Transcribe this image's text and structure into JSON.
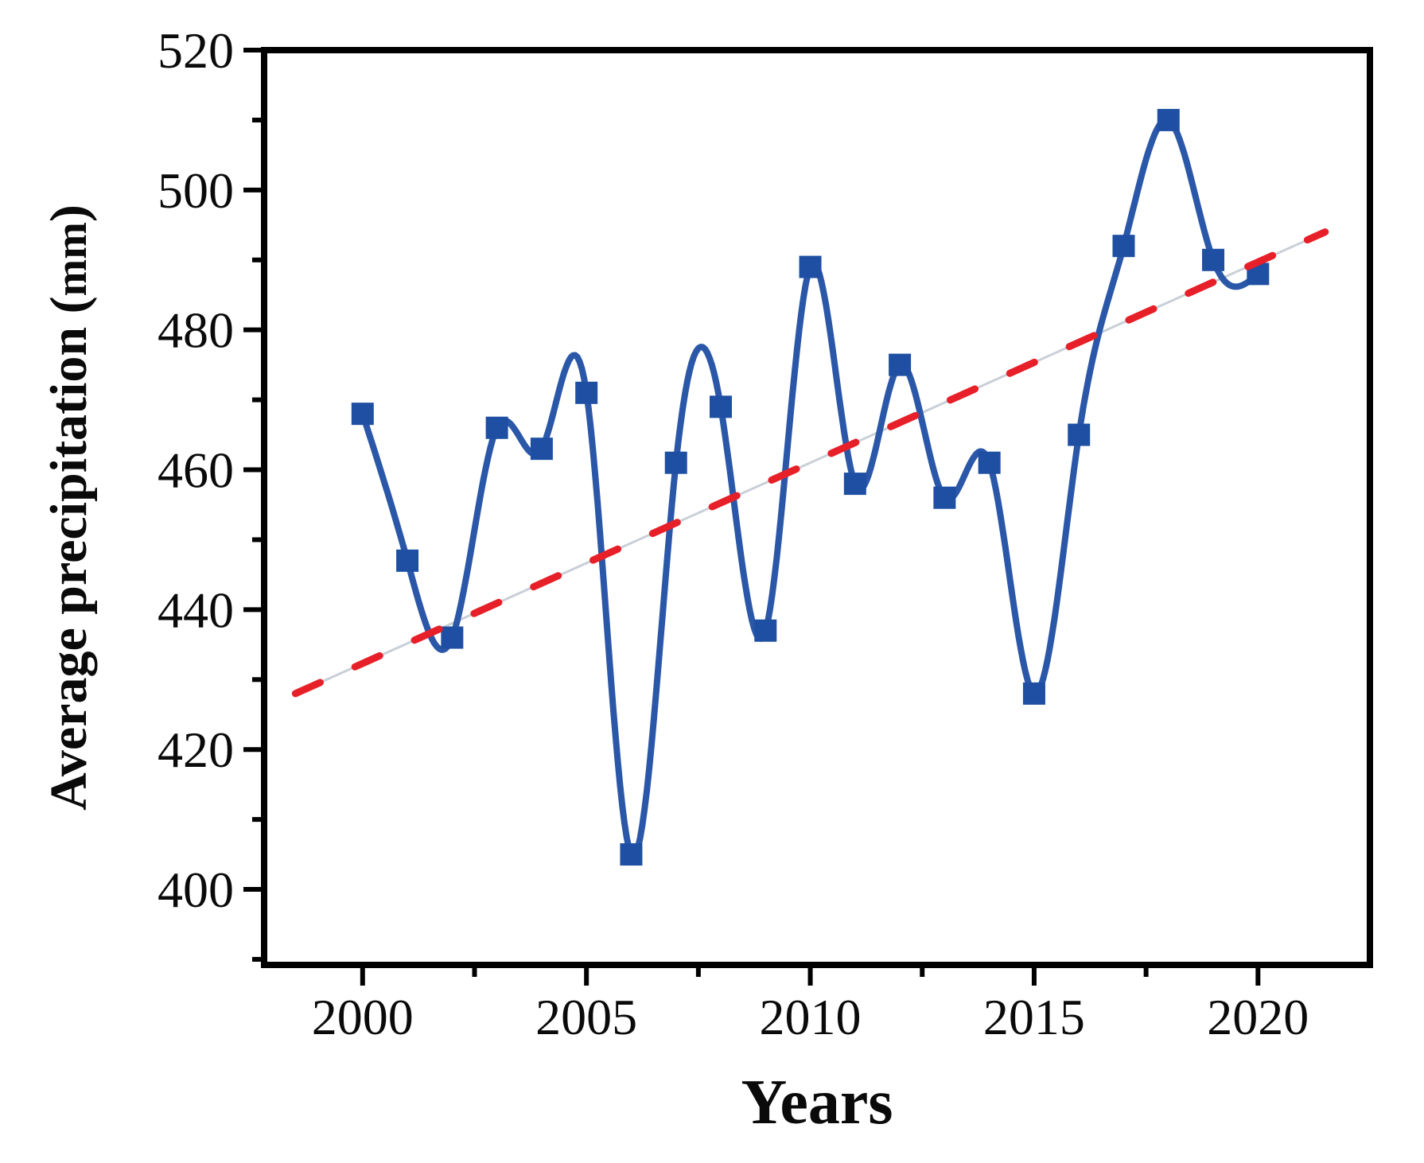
{
  "figure": {
    "background": "#ffffff"
  },
  "chart_data": {
    "type": "line",
    "title": "",
    "xlabel": "Years",
    "ylabel": "Average precipitation (mm)",
    "ylabel_prefix": "Average precipitation (",
    "ylabel_unit": "mm",
    "ylabel_suffix": ")",
    "x": [
      2000,
      2001,
      2002,
      2003,
      2004,
      2005,
      2006,
      2007,
      2008,
      2009,
      2010,
      2011,
      2012,
      2013,
      2014,
      2015,
      2016,
      2017,
      2018,
      2019,
      2020
    ],
    "series": [
      {
        "name": "Average precipitation",
        "line_style": "spline",
        "color": "#2b57a8",
        "line_width": 8,
        "marker": "square",
        "marker_color": "#1e4fa3",
        "marker_size": 28,
        "values": [
          468,
          447,
          436,
          466,
          463,
          471,
          405,
          461,
          469,
          437,
          489,
          458,
          475,
          456,
          461,
          428,
          465,
          492,
          510,
          490,
          488
        ]
      },
      {
        "name": "Linear trend",
        "line_style": "dashed",
        "color": "#e71f28",
        "line_width": 9,
        "points": [
          {
            "x": 1998.5,
            "y": 428
          },
          {
            "x": 2021.5,
            "y": 494
          }
        ]
      }
    ],
    "xlim": [
      1997.8,
      2022.5
    ],
    "ylim": [
      389.2,
      520
    ],
    "xticks": [
      2000,
      2005,
      2010,
      2015,
      2020
    ],
    "xminorticks": [
      2002.5,
      2007.5,
      2012.5,
      2017.5
    ],
    "yticks": [
      400,
      420,
      440,
      460,
      480,
      500,
      520
    ],
    "yminorticks": [
      390,
      410,
      430,
      450,
      470,
      490,
      510
    ],
    "grid": false,
    "legend": "none",
    "frame_color": "#000000",
    "text_color": "#0a0a0a",
    "underlay_color": "#cad0d8",
    "background": "#ffffff"
  }
}
